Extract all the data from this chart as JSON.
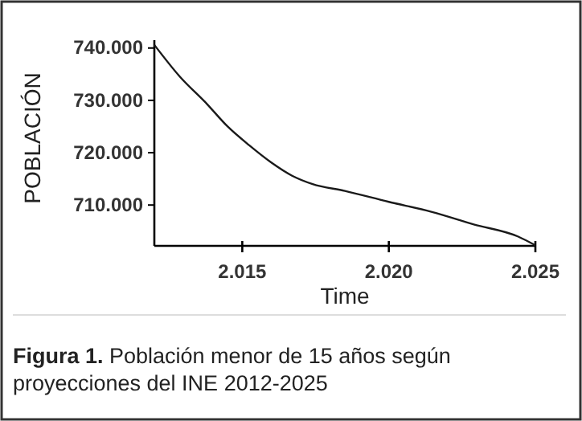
{
  "chart_data": {
    "type": "line",
    "xlabel": "Time",
    "ylabel": "POBLACIÓN",
    "annotations": [
      "Figura 1. Población menor de 15 años según proyecciones del INE 2012-2025"
    ],
    "x": [
      2012,
      2012.86,
      2013.78,
      2014.5,
      2015.24,
      2015.97,
      2016.7,
      2017.4,
      2018.5,
      2020,
      2021.45,
      2022.9,
      2024.4,
      2025
    ],
    "series": [
      {
        "color": "#1a1a1a",
        "values": [
          740600,
          734600,
          729400,
          725000,
          721400,
          718200,
          715600,
          714000,
          712700,
          710600,
          708700,
          706300,
          704000,
          702300
        ]
      }
    ],
    "xlim": [
      2012,
      2025
    ],
    "ylim": [
      702200,
      741500
    ],
    "xticks": [
      {
        "value": 2015,
        "label": "2.015"
      },
      {
        "value": 2020,
        "label": "2.020"
      },
      {
        "value": 2025,
        "label": "2.025"
      }
    ],
    "yticks": [
      {
        "value": 710000,
        "label": "710.000"
      },
      {
        "value": 720000,
        "label": "720.000"
      },
      {
        "value": 730000,
        "label": "730.000"
      },
      {
        "value": 740000,
        "label": "740.000"
      }
    ],
    "marker": "none",
    "line_style": "solid"
  }
}
